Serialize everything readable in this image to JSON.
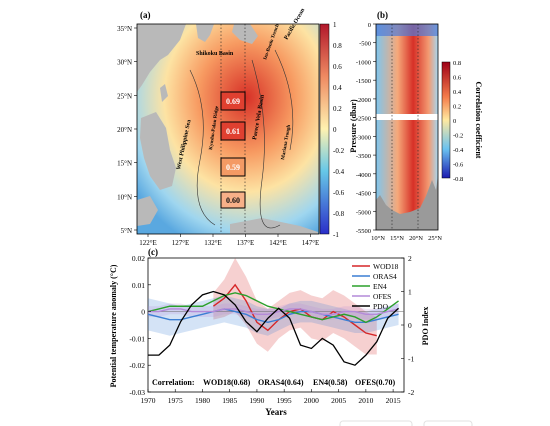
{
  "panel_a": {
    "label": "(a)",
    "lat_ticks": [
      "35°N",
      "30°N",
      "25°N",
      "20°N",
      "15°N",
      "10°N",
      "5°N"
    ],
    "lon_ticks": [
      "122°E",
      "127°E",
      "132°E",
      "137°E",
      "142°E",
      "147°E"
    ],
    "colorbar_ticks": [
      "1",
      "0.8",
      "0.6",
      "0.4",
      "0.2",
      "0",
      "-0.2",
      "-0.4",
      "-0.6",
      "-0.8",
      "-1"
    ],
    "region_labels": [
      "Shikoku Basin",
      "Pacific Ocean",
      "West Philippine Sea",
      "Parece Vela Basin",
      "Mariana Trough",
      "Kyushu-Palau Ridge",
      "Izu-Bonin Trench"
    ],
    "box_values": [
      "0.69",
      "0.61",
      "0.59",
      "0.60"
    ]
  },
  "panel_b": {
    "label": "(b)",
    "ylabel": "Pressure (dbar)",
    "y_ticks": [
      "0",
      "-500",
      "-1000",
      "-1500",
      "-2000",
      "-2500",
      "-3000",
      "-3500",
      "-4000",
      "-4500",
      "-5000",
      "-5500"
    ],
    "x_ticks": [
      "10°N",
      "15°N",
      "20°N",
      "25°N"
    ],
    "colorbar_title": "Correlation coefficient",
    "colorbar_ticks": [
      "0.8",
      "0.6",
      "0.4",
      "0.2",
      "0",
      "-0.2",
      "-0.4",
      "-0.6",
      "-0.8"
    ]
  },
  "chart_data": {
    "type": "line",
    "panel_label": "(c)",
    "xlabel": "Years",
    "ylabel": "Potential temperature anomaly (°C)",
    "y2label": "PDO Index",
    "xlim": [
      1970,
      2017
    ],
    "ylim": [
      -0.03,
      0.02
    ],
    "y2lim": [
      -2,
      2
    ],
    "x_ticks": [
      "1970",
      "1975",
      "1980",
      "1985",
      "1990",
      "1995",
      "2000",
      "2005",
      "2010",
      "2015"
    ],
    "y_ticks": [
      "0.02",
      "0.01",
      "0",
      "-0.01",
      "-0.02",
      "-0.03"
    ],
    "y2_ticks": [
      "2",
      "1",
      "0",
      "-1",
      "-2"
    ],
    "correlation_label": "Correlation:",
    "correlation_entries": [
      "WOD18(0.68)",
      "ORAS4(0.64)",
      "EN4(0.58)",
      "OFES(0.70)"
    ],
    "series": [
      {
        "name": "WOD18",
        "color": "#d62728",
        "axis": "left",
        "x": [
          1982,
          1984,
          1986,
          1988,
          1990,
          1992,
          1994,
          1996,
          1998,
          2000,
          2002,
          2004,
          2006,
          2008,
          2010,
          2012
        ],
        "y": [
          0.002,
          0.005,
          0.01,
          0.004,
          -0.004,
          -0.007,
          -0.003,
          0.0,
          0.001,
          -0.002,
          -0.003,
          0.0,
          -0.002,
          -0.005,
          -0.008,
          -0.009
        ],
        "band": [
          0.005,
          0.007,
          0.01,
          0.009,
          0.008,
          0.008,
          0.007,
          0.007,
          0.007,
          0.008,
          0.008,
          0.008,
          0.008,
          0.008,
          0.008,
          0.007
        ]
      },
      {
        "name": "ORAS4",
        "color": "#3b7fd4",
        "axis": "left",
        "x": [
          1970,
          1972,
          1974,
          1976,
          1978,
          1980,
          1982,
          1984,
          1986,
          1988,
          1990,
          1992,
          1994,
          1996,
          1998,
          2000,
          2002,
          2004,
          2006,
          2008,
          2010,
          2012,
          2014,
          2016
        ],
        "y": [
          -0.001,
          -0.002,
          -0.003,
          -0.003,
          -0.002,
          -0.001,
          0.0,
          0.001,
          0.0,
          -0.001,
          -0.003,
          -0.004,
          -0.003,
          -0.001,
          0.0,
          0.0,
          -0.001,
          -0.002,
          -0.003,
          -0.004,
          -0.004,
          -0.003,
          -0.002,
          -0.001
        ],
        "band": [
          0.006,
          0.006,
          0.006,
          0.005,
          0.005,
          0.005,
          0.005,
          0.005,
          0.005,
          0.005,
          0.005,
          0.005,
          0.004,
          0.004,
          0.004,
          0.004,
          0.004,
          0.004,
          0.004,
          0.004,
          0.004,
          0.004,
          0.004,
          0.004
        ]
      },
      {
        "name": "EN4",
        "color": "#2ca02c",
        "axis": "left",
        "x": [
          1970,
          1972,
          1974,
          1976,
          1978,
          1980,
          1982,
          1984,
          1986,
          1988,
          1990,
          1992,
          1994,
          1996,
          1998,
          2000,
          2002,
          2004,
          2006,
          2008,
          2010,
          2012,
          2014,
          2016
        ],
        "y": [
          0.0,
          0.001,
          0.002,
          0.002,
          0.002,
          0.002,
          0.004,
          0.006,
          0.007,
          0.006,
          0.004,
          0.002,
          0.001,
          0.0,
          -0.001,
          -0.002,
          -0.003,
          -0.002,
          -0.001,
          -0.002,
          -0.004,
          -0.002,
          0.001,
          0.004
        ],
        "band": [
          0,
          0,
          0,
          0,
          0,
          0,
          0,
          0,
          0,
          0,
          0,
          0,
          0,
          0,
          0,
          0,
          0,
          0,
          0,
          0,
          0,
          0,
          0,
          0
        ]
      },
      {
        "name": "OFES",
        "color": "#b48ad8",
        "axis": "left",
        "x": [
          1970,
          1972,
          1974,
          1976,
          1978,
          1980,
          1982,
          1984,
          1986,
          1988,
          1990,
          1992,
          1994,
          1996,
          1998,
          2000,
          2002,
          2004,
          2006,
          2008,
          2010,
          2012,
          2014,
          2016
        ],
        "y": [
          0.0,
          0.0,
          0.001,
          0.001,
          0.0,
          0.0,
          0.0,
          0.001,
          0.001,
          0.0,
          -0.001,
          -0.001,
          0.0,
          0.001,
          0.001,
          0.0,
          -0.001,
          -0.001,
          0.0,
          0.0,
          -0.001,
          -0.001,
          0.0,
          0.001
        ],
        "band": [
          0.002,
          0.002,
          0.002,
          0.002,
          0.002,
          0.002,
          0.002,
          0.002,
          0.002,
          0.002,
          0.002,
          0.002,
          0.002,
          0.002,
          0.002,
          0.002,
          0.002,
          0.002,
          0.002,
          0.002,
          0.002,
          0.002,
          0.002,
          0.002
        ]
      },
      {
        "name": "PDO",
        "color": "#000000",
        "axis": "right",
        "x": [
          1970,
          1972,
          1974,
          1976,
          1978,
          1980,
          1982,
          1984,
          1986,
          1988,
          1990,
          1992,
          1994,
          1996,
          1998,
          2000,
          2002,
          2004,
          2006,
          2008,
          2010,
          2012,
          2014,
          2016
        ],
        "y": [
          -0.9,
          -0.9,
          -0.6,
          0.1,
          0.6,
          0.9,
          1.0,
          0.9,
          0.6,
          0.1,
          -0.2,
          0.2,
          0.5,
          0.2,
          -0.6,
          -0.7,
          -0.4,
          -0.6,
          -1.1,
          -1.2,
          -0.9,
          -0.5,
          0.2,
          0.5
        ],
        "band": [
          0,
          0,
          0,
          0,
          0,
          0,
          0,
          0,
          0,
          0,
          0,
          0,
          0,
          0,
          0,
          0,
          0,
          0,
          0,
          0,
          0,
          0,
          0,
          0
        ]
      }
    ],
    "legend": [
      "WOD18",
      "ORAS4",
      "EN4",
      "OFES",
      "PDO"
    ],
    "legend_position": "top-right",
    "grid": false
  },
  "colors": {
    "land": "#b9b9b9",
    "ocean_white": "#ffffff"
  }
}
